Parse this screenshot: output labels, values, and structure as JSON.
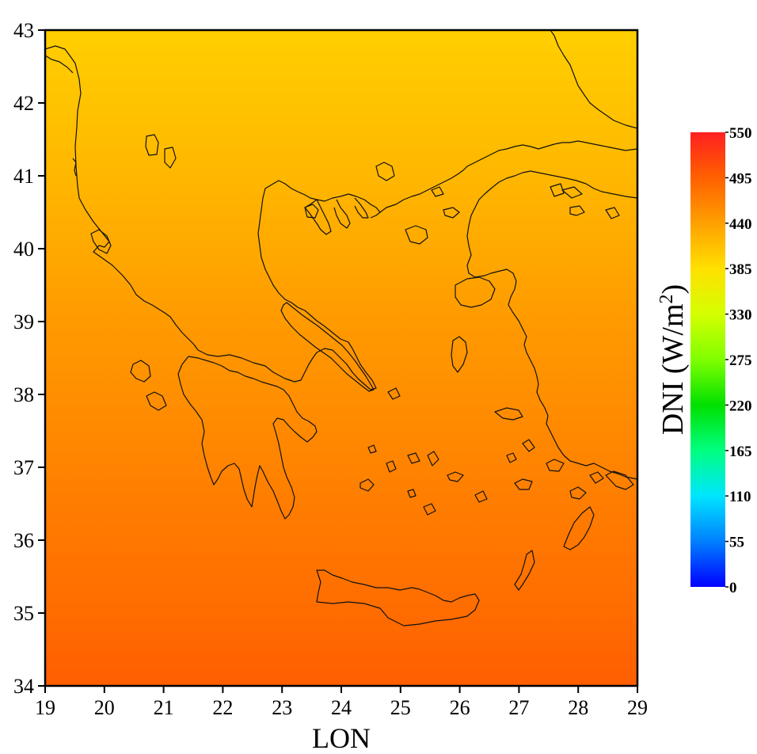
{
  "chart_data": {
    "type": "heatmap",
    "title": "",
    "xlabel": "LON",
    "ylabel": "",
    "xlim": [
      19,
      29
    ],
    "ylim": [
      34,
      43
    ],
    "x_ticks": [
      "19",
      "20",
      "21",
      "22",
      "23",
      "24",
      "25",
      "26",
      "27",
      "28",
      "29"
    ],
    "y_ticks": [
      "34",
      "35",
      "36",
      "37",
      "38",
      "39",
      "40",
      "41",
      "42",
      "43"
    ],
    "field_gradient_by_latitude": [
      {
        "lat": 43,
        "value": 400
      },
      {
        "lat": 42,
        "value": 410
      },
      {
        "lat": 41,
        "value": 420
      },
      {
        "lat": 40,
        "value": 432
      },
      {
        "lat": 39,
        "value": 445
      },
      {
        "lat": 38,
        "value": 455
      },
      {
        "lat": 37,
        "value": 465
      },
      {
        "lat": 36,
        "value": 475
      },
      {
        "lat": 35,
        "value": 485
      },
      {
        "lat": 34,
        "value": 497
      }
    ],
    "colorbar": {
      "title": "DNI (W/m",
      "title_superscript": "2",
      "title_close": ")",
      "min": 0,
      "max": 550,
      "ticks": [
        "550",
        "495",
        "440",
        "385",
        "330",
        "275",
        "220",
        "165",
        "110",
        "55",
        "0"
      ],
      "colors": [
        "#0000ff",
        "#0080ff",
        "#00e5ff",
        "#00ff80",
        "#00e000",
        "#80ff00",
        "#d4ff00",
        "#ffe000",
        "#ffa000",
        "#ff6000",
        "#ff2020"
      ]
    },
    "overlay": "coastlines"
  }
}
